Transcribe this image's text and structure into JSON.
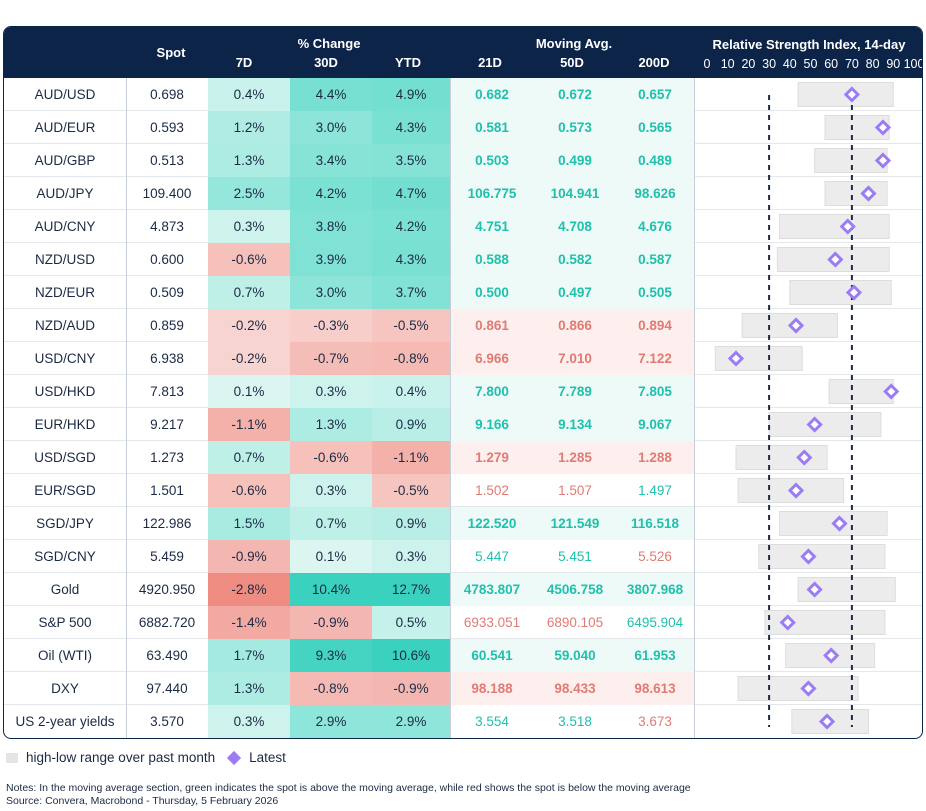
{
  "header": {
    "spot": "Spot",
    "pct_change": "% Change",
    "col_7d": "7D",
    "col_30d": "30D",
    "col_ytd": "YTD",
    "moving_avg": "Moving Avg.",
    "col_21d": "21D",
    "col_50d": "50D",
    "col_200d": "200D",
    "rsi_title": "Relative Strength Index, 14-day",
    "rsi_ticks": [
      "0",
      "10",
      "20",
      "30",
      "40",
      "50",
      "60",
      "70",
      "80",
      "90",
      "100"
    ]
  },
  "colors": {
    "header_bg": "#0c2447",
    "green_text": "#1fc0ac",
    "red_text": "#e07b74",
    "range_bar": "#ececec",
    "diamond": "#9b7cf2"
  },
  "chart_data": {
    "type": "table",
    "rsi_reference_lines": [
      30,
      70
    ],
    "rows": [
      {
        "pair": "AUD/USD",
        "spot": "0.698",
        "d7": "0.4%",
        "d30": "4.4%",
        "ytd": "4.9%",
        "ma21": "0.682",
        "ma50": "0.672",
        "ma200": "0.657",
        "rsi": 70,
        "rsi_low": 44,
        "rsi_high": 90
      },
      {
        "pair": "AUD/EUR",
        "spot": "0.593",
        "d7": "1.2%",
        "d30": "3.0%",
        "ytd": "4.3%",
        "ma21": "0.581",
        "ma50": "0.573",
        "ma200": "0.565",
        "rsi": 85,
        "rsi_low": 57,
        "rsi_high": 88
      },
      {
        "pair": "AUD/GBP",
        "spot": "0.513",
        "d7": "1.3%",
        "d30": "3.4%",
        "ytd": "3.5%",
        "ma21": "0.503",
        "ma50": "0.499",
        "ma200": "0.489",
        "rsi": 85,
        "rsi_low": 52,
        "rsi_high": 87
      },
      {
        "pair": "AUD/JPY",
        "spot": "109.400",
        "d7": "2.5%",
        "d30": "4.2%",
        "ytd": "4.7%",
        "ma21": "106.775",
        "ma50": "104.941",
        "ma200": "98.626",
        "rsi": 78,
        "rsi_low": 57,
        "rsi_high": 87
      },
      {
        "pair": "AUD/CNY",
        "spot": "4.873",
        "d7": "0.3%",
        "d30": "3.8%",
        "ytd": "4.2%",
        "ma21": "4.751",
        "ma50": "4.708",
        "ma200": "4.676",
        "rsi": 68,
        "rsi_low": 35,
        "rsi_high": 88
      },
      {
        "pair": "NZD/USD",
        "spot": "0.600",
        "d7": "-0.6%",
        "d30": "3.9%",
        "ytd": "4.3%",
        "ma21": "0.588",
        "ma50": "0.582",
        "ma200": "0.587",
        "rsi": 62,
        "rsi_low": 34,
        "rsi_high": 88
      },
      {
        "pair": "NZD/EUR",
        "spot": "0.509",
        "d7": "0.7%",
        "d30": "3.0%",
        "ytd": "3.7%",
        "ma21": "0.500",
        "ma50": "0.497",
        "ma200": "0.505",
        "rsi": 71,
        "rsi_low": 40,
        "rsi_high": 89
      },
      {
        "pair": "NZD/AUD",
        "spot": "0.859",
        "d7": "-0.2%",
        "d30": "-0.3%",
        "ytd": "-0.5%",
        "ma21": "0.861",
        "ma50": "0.866",
        "ma200": "0.894",
        "rsi": 43,
        "rsi_low": 17,
        "rsi_high": 63
      },
      {
        "pair": "USD/CNY",
        "spot": "6.938",
        "d7": "-0.2%",
        "d30": "-0.7%",
        "ytd": "-0.8%",
        "ma21": "6.966",
        "ma50": "7.010",
        "ma200": "7.122",
        "rsi": 14,
        "rsi_low": 4,
        "rsi_high": 46
      },
      {
        "pair": "USD/HKD",
        "spot": "7.813",
        "d7": "0.1%",
        "d30": "0.3%",
        "ytd": "0.4%",
        "ma21": "7.800",
        "ma50": "7.789",
        "ma200": "7.805",
        "rsi": 89,
        "rsi_low": 59,
        "rsi_high": 90
      },
      {
        "pair": "EUR/HKD",
        "spot": "9.217",
        "d7": "-1.1%",
        "d30": "1.3%",
        "ytd": "0.9%",
        "ma21": "9.166",
        "ma50": "9.134",
        "ma200": "9.067",
        "rsi": 52,
        "rsi_low": 30,
        "rsi_high": 84
      },
      {
        "pair": "USD/SGD",
        "spot": "1.273",
        "d7": "0.7%",
        "d30": "-0.6%",
        "ytd": "-1.1%",
        "ma21": "1.279",
        "ma50": "1.285",
        "ma200": "1.288",
        "rsi": 47,
        "rsi_low": 14,
        "rsi_high": 58
      },
      {
        "pair": "EUR/SGD",
        "spot": "1.501",
        "d7": "-0.6%",
        "d30": "0.3%",
        "ytd": "-0.5%",
        "ma21": "1.502",
        "ma50": "1.507",
        "ma200": "1.497",
        "rsi": 43,
        "rsi_low": 15,
        "rsi_high": 66
      },
      {
        "pair": "SGD/JPY",
        "spot": "122.986",
        "d7": "1.5%",
        "d30": "0.7%",
        "ytd": "0.9%",
        "ma21": "122.520",
        "ma50": "121.549",
        "ma200": "116.518",
        "rsi": 64,
        "rsi_low": 35,
        "rsi_high": 87
      },
      {
        "pair": "SGD/CNY",
        "spot": "5.459",
        "d7": "-0.9%",
        "d30": "0.1%",
        "ytd": "0.3%",
        "ma21": "5.447",
        "ma50": "5.451",
        "ma200": "5.526",
        "rsi": 49,
        "rsi_low": 25,
        "rsi_high": 86
      },
      {
        "pair": "Gold",
        "spot": "4920.950",
        "d7": "-2.8%",
        "d30": "10.4%",
        "ytd": "12.7%",
        "ma21": "4783.807",
        "ma50": "4506.758",
        "ma200": "3807.968",
        "rsi": 52,
        "rsi_low": 44,
        "rsi_high": 91
      },
      {
        "pair": "S&P 500",
        "spot": "6882.720",
        "d7": "-1.4%",
        "d30": "-0.9%",
        "ytd": "0.5%",
        "ma21": "6933.051",
        "ma50": "6890.105",
        "ma200": "6495.904",
        "rsi": 39,
        "rsi_low": 28,
        "rsi_high": 86
      },
      {
        "pair": "Oil (WTI)",
        "spot": "63.490",
        "d7": "1.7%",
        "d30": "9.3%",
        "ytd": "10.6%",
        "ma21": "60.541",
        "ma50": "59.040",
        "ma200": "61.953",
        "rsi": 60,
        "rsi_low": 38,
        "rsi_high": 81
      },
      {
        "pair": "DXY",
        "spot": "97.440",
        "d7": "1.3%",
        "d30": "-0.8%",
        "ytd": "-0.9%",
        "ma21": "98.188",
        "ma50": "98.433",
        "ma200": "98.613",
        "rsi": 49,
        "rsi_low": 15,
        "rsi_high": 73
      },
      {
        "pair": "US 2-year yields",
        "spot": "3.570",
        "d7": "0.3%",
        "d30": "2.9%",
        "ytd": "2.9%",
        "ma21": "3.554",
        "ma50": "3.518",
        "ma200": "3.673",
        "rsi": 58,
        "rsi_low": 41,
        "rsi_high": 78
      }
    ]
  },
  "legend": {
    "range": "high-low range over past month",
    "latest": "Latest"
  },
  "notes": {
    "line1": "Notes: In the moving average section, green indicates the spot is above the moving average, while red shows the spot is below the moving average",
    "line2": "Source: Convera, Macrobond - Thursday, 5 February 2026"
  }
}
